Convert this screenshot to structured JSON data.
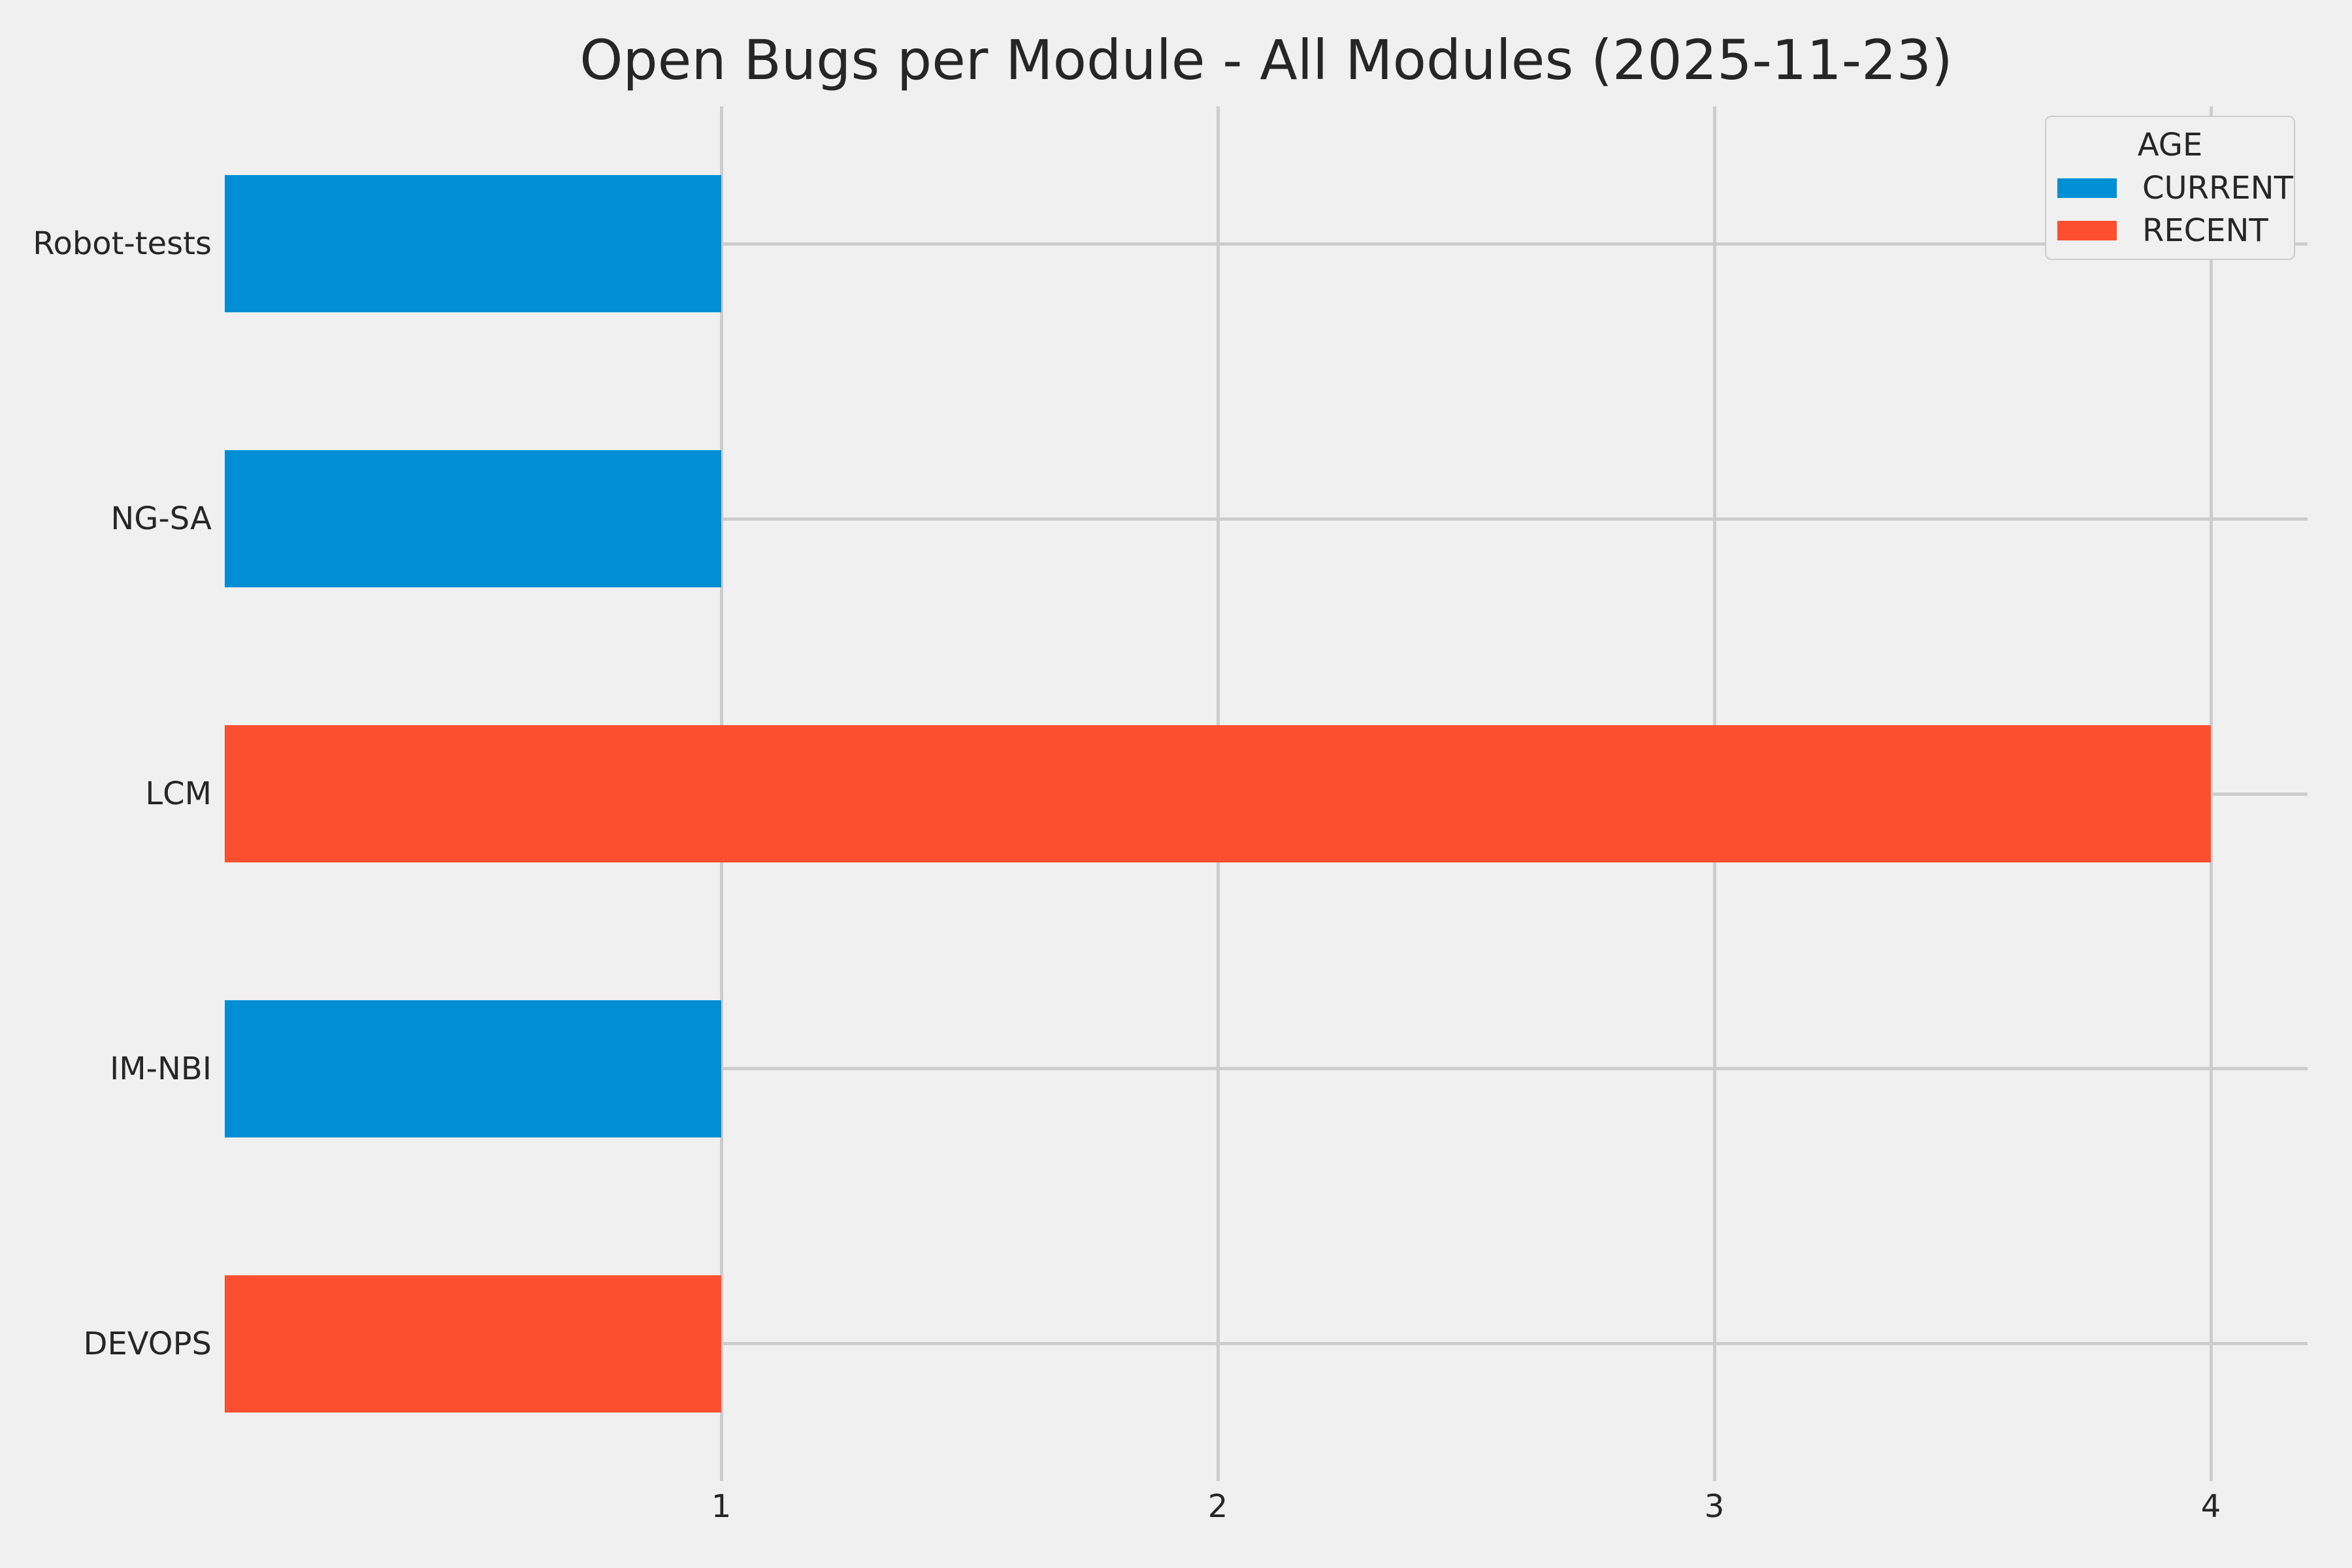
{
  "chart_data": {
    "type": "bar",
    "orientation": "horizontal",
    "title": "Open Bugs per Module - All Modules (2025-11-23)",
    "categories": [
      "Robot-tests",
      "NG-SA",
      "LCM",
      "IM-NBI",
      "DEVOPS"
    ],
    "values": [
      1,
      1,
      4,
      1,
      1
    ],
    "bar_series": [
      "CURRENT",
      "CURRENT",
      "RECENT",
      "CURRENT",
      "RECENT"
    ],
    "series_colors": {
      "CURRENT": "#008fd5",
      "RECENT": "#fc4f30"
    },
    "x_ticks": [
      "1",
      "2",
      "3",
      "4"
    ],
    "xlim": [
      0,
      4.2
    ],
    "grid": "on",
    "xlabel": "",
    "ylabel": "",
    "legend": {
      "title": "AGE",
      "position": "upper-right",
      "entries": [
        {
          "label": "CURRENT",
          "color": "#008fd5"
        },
        {
          "label": "RECENT",
          "color": "#fc4f30"
        }
      ]
    }
  },
  "style": {
    "background": "#f0f0f0",
    "grid_color": "#cdcdcd",
    "text_color": "#262626",
    "legend_border": "#cccccc"
  }
}
